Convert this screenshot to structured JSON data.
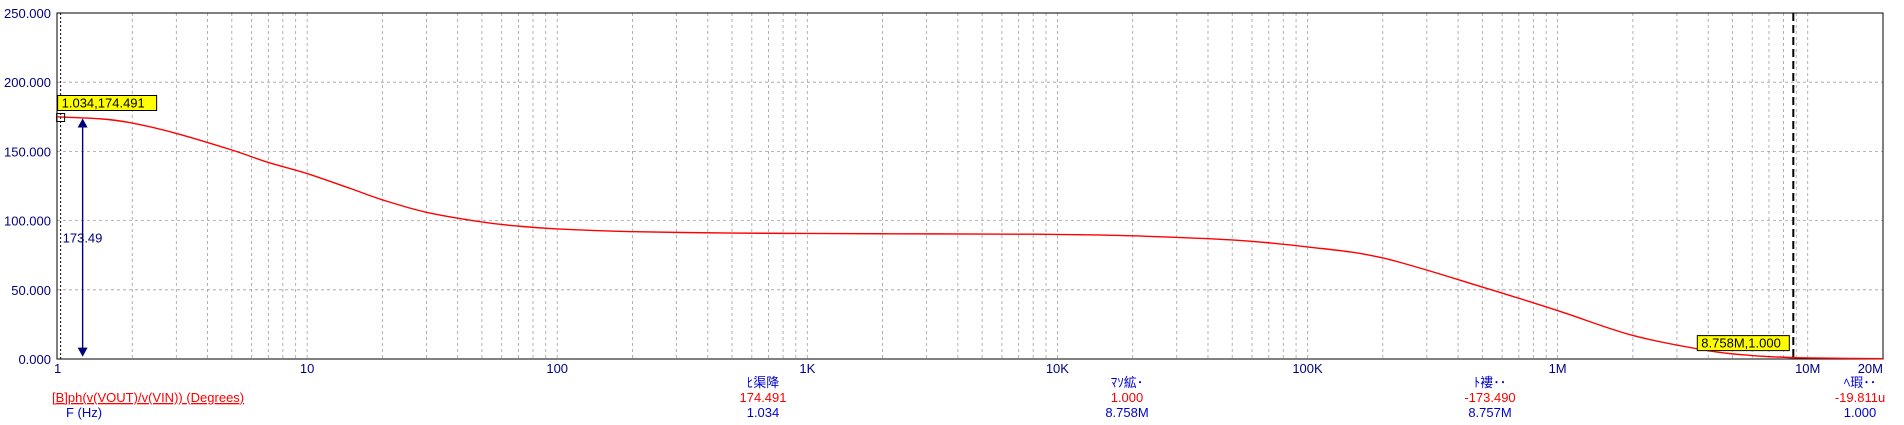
{
  "chart_data": {
    "type": "line",
    "title": "",
    "xlabel": "F (Hz)",
    "ylabel": "",
    "xscale": "log",
    "xlim": [
      1,
      20000000
    ],
    "ylim": [
      0,
      250
    ],
    "grid": true,
    "x_tick_labels": [
      "1",
      "10",
      "100",
      "1K",
      "10K",
      "100K",
      "1M",
      "10M",
      "20M"
    ],
    "y_tick_labels": [
      "0.000",
      "50.000",
      "100.000",
      "150.000",
      "200.000",
      "250.000"
    ],
    "series": [
      {
        "name": "ph(v(VOUT)/v(VIN)) (Degrees)",
        "color": "#ff0000",
        "x": [
          1,
          1.5,
          2,
          3,
          5,
          7,
          10,
          15,
          20,
          30,
          50,
          70,
          100,
          200,
          500,
          1000,
          2000,
          5000,
          10000,
          20000,
          50000,
          100000,
          200000,
          500000,
          1000000,
          2000000,
          4000000,
          6000000,
          8758000,
          10000000,
          15000000,
          20000000
        ],
        "y": [
          175,
          173.5,
          170.5,
          163,
          151,
          142,
          134,
          123,
          115,
          106,
          99,
          96,
          94,
          92,
          91,
          90.7,
          90.5,
          90.3,
          90,
          89,
          86,
          81,
          73,
          52,
          35,
          17,
          6,
          2.5,
          1,
          0.8,
          0.4,
          0.2
        ]
      }
    ],
    "cursors": [
      {
        "label": "1.034,174.491",
        "x": 1.034,
        "y": 174.491
      },
      {
        "label": "8.758M,1.000",
        "x": 8758000,
        "y": 1.0
      }
    ],
    "delta_label": "173.49"
  },
  "cursor_table": {
    "trace_label": "[B]ph(v(VOUT)/v(VIN)) (Degrees)",
    "x_label": "F (Hz)",
    "columns": [
      {
        "header": "ﾋ渠降",
        "trace_value": "174.491",
        "x_value": "1.034"
      },
      {
        "header": "ﾏｿ絋･",
        "trace_value": "1.000",
        "x_value": "8.758M"
      },
      {
        "header": "ﾄ褸･･",
        "trace_value": "-173.490",
        "x_value": "8.757M"
      },
      {
        "header": "ﾍ瑕･･",
        "trace_value": "-19.811u",
        "x_value": "1.000"
      }
    ]
  },
  "colors": {
    "trace": "#ff0000",
    "table_header": "#0000cc",
    "cursor_box": "#ffff00",
    "grid": "#a0a0a0",
    "axis_text": "#000080",
    "arrow": "#00007a"
  }
}
